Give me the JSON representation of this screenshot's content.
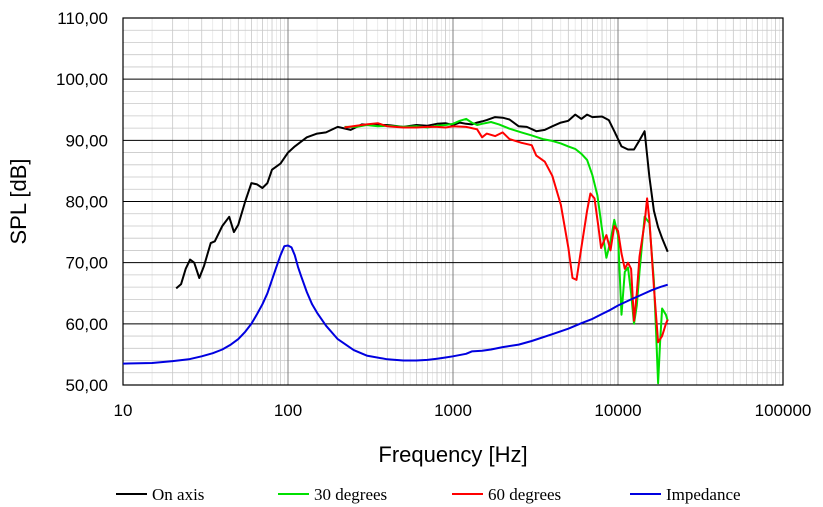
{
  "chart_data": {
    "type": "line",
    "title": "",
    "xlabel": "Frequency [Hz]",
    "ylabel": "SPL [dB]",
    "xscale": "log",
    "xlim": [
      10,
      100000
    ],
    "ylim": [
      50,
      110
    ],
    "xticks": [
      "10",
      "100",
      "1000",
      "10000",
      "100000"
    ],
    "yticks": [
      "50,00",
      "60,00",
      "70,00",
      "80,00",
      "90,00",
      "100,00",
      "110,00"
    ],
    "grid": true,
    "legend_position": "bottom",
    "series": [
      {
        "name": "On axis",
        "color": "#000000",
        "points": [
          [
            21,
            65.8
          ],
          [
            22.5,
            66.5
          ],
          [
            24,
            69
          ],
          [
            25.5,
            70.5
          ],
          [
            27,
            70
          ],
          [
            29,
            67.5
          ],
          [
            31,
            69.5
          ],
          [
            34,
            73.2
          ],
          [
            36,
            73.5
          ],
          [
            40,
            76
          ],
          [
            44,
            77.5
          ],
          [
            47,
            75
          ],
          [
            50,
            76.2
          ],
          [
            55,
            80
          ],
          [
            60,
            83
          ],
          [
            65,
            82.8
          ],
          [
            70,
            82.2
          ],
          [
            75,
            83
          ],
          [
            80,
            85.2
          ],
          [
            90,
            86.2
          ],
          [
            100,
            88
          ],
          [
            110,
            89
          ],
          [
            130,
            90.5
          ],
          [
            150,
            91.1
          ],
          [
            170,
            91.3
          ],
          [
            200,
            92.2
          ],
          [
            240,
            91.7
          ],
          [
            280,
            92.6
          ],
          [
            330,
            92.5
          ],
          [
            400,
            92.5
          ],
          [
            500,
            92.2
          ],
          [
            600,
            92.5
          ],
          [
            700,
            92.4
          ],
          [
            800,
            92.7
          ],
          [
            900,
            92.8
          ],
          [
            1000,
            92.5
          ],
          [
            1100,
            92.9
          ],
          [
            1200,
            92.7
          ],
          [
            1300,
            92.6
          ],
          [
            1400,
            92.9
          ],
          [
            1500,
            93.1
          ],
          [
            1600,
            93.3
          ],
          [
            1800,
            93.8
          ],
          [
            2000,
            93.7
          ],
          [
            2200,
            93.4
          ],
          [
            2500,
            92.3
          ],
          [
            2800,
            92.2
          ],
          [
            3200,
            91.5
          ],
          [
            3600,
            91.7
          ],
          [
            4000,
            92.3
          ],
          [
            4500,
            92.9
          ],
          [
            5000,
            93.2
          ],
          [
            5500,
            94.2
          ],
          [
            6000,
            93.5
          ],
          [
            6500,
            94.2
          ],
          [
            7000,
            93.8
          ],
          [
            8000,
            93.9
          ],
          [
            8800,
            93.3
          ],
          [
            9500,
            91.5
          ],
          [
            10500,
            89
          ],
          [
            11500,
            88.5
          ],
          [
            12500,
            88.5
          ],
          [
            13500,
            90
          ],
          [
            14500,
            91.5
          ],
          [
            15500,
            84
          ],
          [
            16500,
            78.5
          ],
          [
            17500,
            75.8
          ],
          [
            18500,
            74
          ],
          [
            20000,
            71.8
          ]
        ]
      },
      {
        "name": "30 degrees",
        "color": "#00e000",
        "points": [
          [
            220,
            92.2
          ],
          [
            260,
            92.2
          ],
          [
            300,
            92.5
          ],
          [
            350,
            92.3
          ],
          [
            400,
            92.4
          ],
          [
            500,
            92.2
          ],
          [
            600,
            92.3
          ],
          [
            700,
            92.1
          ],
          [
            800,
            92.4
          ],
          [
            900,
            92.5
          ],
          [
            1000,
            92.7
          ],
          [
            1100,
            93.2
          ],
          [
            1200,
            93.5
          ],
          [
            1300,
            92.9
          ],
          [
            1400,
            92.5
          ],
          [
            1500,
            92.7
          ],
          [
            1700,
            93
          ],
          [
            1900,
            92.6
          ],
          [
            2200,
            91.9
          ],
          [
            2600,
            91.3
          ],
          [
            3000,
            90.8
          ],
          [
            3500,
            90.2
          ],
          [
            4000,
            89.9
          ],
          [
            4500,
            89.5
          ],
          [
            5000,
            89
          ],
          [
            5500,
            88.6
          ],
          [
            6000,
            87.8
          ],
          [
            6500,
            86.8
          ],
          [
            7000,
            84.3
          ],
          [
            7500,
            81
          ],
          [
            8000,
            75.5
          ],
          [
            8500,
            70.8
          ],
          [
            9000,
            73.5
          ],
          [
            9500,
            77
          ],
          [
            10000,
            74.5
          ],
          [
            10500,
            61.5
          ],
          [
            11000,
            68.5
          ],
          [
            11500,
            69.2
          ],
          [
            12000,
            65
          ],
          [
            12500,
            60
          ],
          [
            13000,
            63
          ],
          [
            13500,
            68.5
          ],
          [
            14500,
            77.5
          ],
          [
            15500,
            76.5
          ],
          [
            16500,
            67
          ],
          [
            17000,
            59
          ],
          [
            17500,
            50.3
          ],
          [
            18000,
            57
          ],
          [
            18500,
            62.5
          ],
          [
            19500,
            61.5
          ],
          [
            20000,
            60.5
          ]
        ]
      },
      {
        "name": "60 degrees",
        "color": "#ff0000",
        "points": [
          [
            220,
            92.1
          ],
          [
            260,
            92.4
          ],
          [
            300,
            92.6
          ],
          [
            350,
            92.8
          ],
          [
            400,
            92.3
          ],
          [
            500,
            92.1
          ],
          [
            600,
            92.1
          ],
          [
            700,
            92.2
          ],
          [
            800,
            92.2
          ],
          [
            900,
            92.1
          ],
          [
            1000,
            92.3
          ],
          [
            1200,
            92.2
          ],
          [
            1400,
            91.8
          ],
          [
            1500,
            90.5
          ],
          [
            1600,
            91.1
          ],
          [
            1800,
            90.7
          ],
          [
            2000,
            91.3
          ],
          [
            2200,
            90.2
          ],
          [
            2600,
            89.6
          ],
          [
            3000,
            89.2
          ],
          [
            3200,
            87.5
          ],
          [
            3600,
            86.5
          ],
          [
            4000,
            84.2
          ],
          [
            4500,
            79.5
          ],
          [
            5000,
            72.5
          ],
          [
            5300,
            67.5
          ],
          [
            5600,
            67.2
          ],
          [
            6000,
            72.5
          ],
          [
            6500,
            78.5
          ],
          [
            6800,
            81.3
          ],
          [
            7200,
            80.5
          ],
          [
            7600,
            76
          ],
          [
            7900,
            72.4
          ],
          [
            8500,
            74.5
          ],
          [
            9000,
            72
          ],
          [
            9500,
            76
          ],
          [
            10000,
            75.2
          ],
          [
            10500,
            71.5
          ],
          [
            11000,
            69
          ],
          [
            11500,
            70
          ],
          [
            12000,
            69
          ],
          [
            12500,
            60.5
          ],
          [
            13000,
            65
          ],
          [
            13500,
            71
          ],
          [
            14500,
            76.5
          ],
          [
            15000,
            80.5
          ],
          [
            15500,
            77
          ],
          [
            16500,
            66
          ],
          [
            17500,
            57
          ],
          [
            18500,
            58
          ],
          [
            19500,
            60
          ],
          [
            20000,
            60.7
          ]
        ]
      },
      {
        "name": "Impedance",
        "color": "#0000e0",
        "points": [
          [
            10,
            53.5
          ],
          [
            15,
            53.6
          ],
          [
            20,
            53.9
          ],
          [
            25,
            54.2
          ],
          [
            30,
            54.7
          ],
          [
            35,
            55.2
          ],
          [
            40,
            55.8
          ],
          [
            45,
            56.6
          ],
          [
            50,
            57.5
          ],
          [
            55,
            58.7
          ],
          [
            60,
            60
          ],
          [
            65,
            61.6
          ],
          [
            70,
            63.2
          ],
          [
            75,
            65
          ],
          [
            80,
            67.2
          ],
          [
            85,
            69.3
          ],
          [
            90,
            71.2
          ],
          [
            95,
            72.7
          ],
          [
            100,
            72.8
          ],
          [
            105,
            72.5
          ],
          [
            110,
            71.2
          ],
          [
            115,
            69.3
          ],
          [
            120,
            67.8
          ],
          [
            130,
            65.2
          ],
          [
            140,
            63.2
          ],
          [
            150,
            61.8
          ],
          [
            170,
            59.7
          ],
          [
            200,
            57.5
          ],
          [
            250,
            55.7
          ],
          [
            300,
            54.8
          ],
          [
            400,
            54.2
          ],
          [
            500,
            54
          ],
          [
            600,
            54
          ],
          [
            700,
            54.1
          ],
          [
            800,
            54.3
          ],
          [
            900,
            54.5
          ],
          [
            1000,
            54.7
          ],
          [
            1200,
            55.1
          ],
          [
            1300,
            55.5
          ],
          [
            1500,
            55.6
          ],
          [
            1700,
            55.8
          ],
          [
            2000,
            56.2
          ],
          [
            2500,
            56.6
          ],
          [
            3000,
            57.2
          ],
          [
            4000,
            58.3
          ],
          [
            5000,
            59.2
          ],
          [
            6000,
            60.1
          ],
          [
            7000,
            60.8
          ],
          [
            8000,
            61.6
          ],
          [
            9000,
            62.3
          ],
          [
            10000,
            63
          ],
          [
            12000,
            64
          ],
          [
            14000,
            64.8
          ],
          [
            16000,
            65.5
          ],
          [
            18000,
            66
          ],
          [
            20000,
            66.4
          ]
        ]
      }
    ]
  }
}
